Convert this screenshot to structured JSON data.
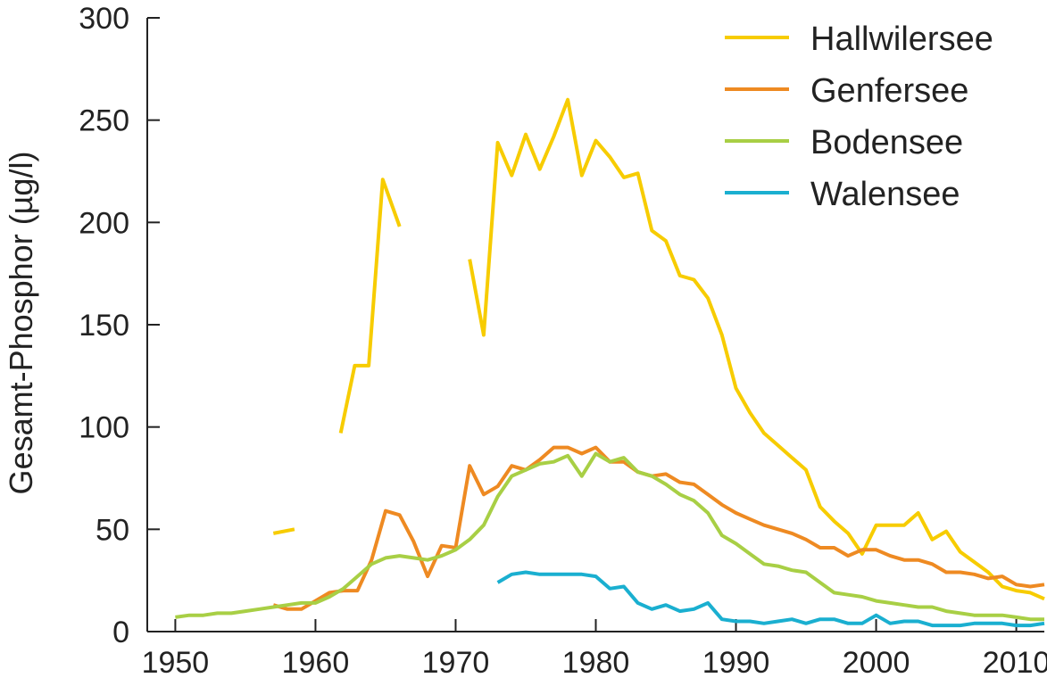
{
  "chart_data": {
    "type": "line",
    "title": "",
    "xlabel": "",
    "ylabel": "Gesamt-Phosphor (µg/l)",
    "xlim": [
      1948,
      2012
    ],
    "ylim": [
      0,
      300
    ],
    "xticks": [
      1950,
      1960,
      1970,
      1980,
      1990,
      2000,
      2010
    ],
    "yticks": [
      0,
      50,
      100,
      150,
      200,
      250,
      300
    ],
    "grid": false,
    "legend": "top-right",
    "series": [
      {
        "name": "Hallwilersee",
        "color": "#F7CC00",
        "points": [
          [
            1957,
            48
          ],
          [
            1958.5,
            50
          ],
          null,
          [
            1961.8,
            97
          ],
          [
            1962.8,
            130
          ],
          [
            1963.8,
            130
          ],
          [
            1964.8,
            221
          ],
          [
            1966,
            198
          ],
          null,
          [
            1971,
            182
          ],
          [
            1972,
            145
          ],
          [
            1973,
            239
          ],
          [
            1974,
            223
          ],
          [
            1975,
            243
          ],
          [
            1976,
            226
          ],
          [
            1977,
            242
          ],
          [
            1978,
            260
          ],
          [
            1979,
            223
          ],
          [
            1980,
            240
          ],
          [
            1981,
            232
          ],
          [
            1982,
            222
          ],
          [
            1983,
            224
          ],
          [
            1984,
            196
          ],
          [
            1985,
            191
          ],
          [
            1986,
            174
          ],
          [
            1987,
            172
          ],
          [
            1988,
            163
          ],
          [
            1989,
            145
          ],
          [
            1990,
            119
          ],
          [
            1991,
            107
          ],
          [
            1992,
            97
          ],
          [
            1993,
            91
          ],
          [
            1994,
            85
          ],
          [
            1995,
            79
          ],
          [
            1996,
            61
          ],
          [
            1997,
            54
          ],
          [
            1998,
            48
          ],
          [
            1999,
            38
          ],
          [
            2000,
            52
          ],
          [
            2001,
            52
          ],
          [
            2002,
            52
          ],
          [
            2003,
            58
          ],
          [
            2004,
            45
          ],
          [
            2005,
            49
          ],
          [
            2006,
            39
          ],
          [
            2007,
            34
          ],
          [
            2008,
            29
          ],
          [
            2009,
            22
          ],
          [
            2010,
            20
          ],
          [
            2011,
            19
          ],
          [
            2012,
            16
          ]
        ]
      },
      {
        "name": "Genfersee",
        "color": "#EE8A22",
        "points": [
          [
            1957,
            13
          ],
          [
            1958,
            11
          ],
          [
            1959,
            11
          ],
          [
            1960,
            15
          ],
          [
            1961,
            19
          ],
          [
            1962,
            20
          ],
          [
            1963,
            20
          ],
          [
            1964,
            35
          ],
          [
            1965,
            59
          ],
          [
            1966,
            57
          ],
          [
            1967,
            44
          ],
          [
            1968,
            27
          ],
          [
            1969,
            42
          ],
          [
            1970,
            41
          ],
          [
            1971,
            81
          ],
          [
            1972,
            67
          ],
          [
            1973,
            71
          ],
          [
            1974,
            81
          ],
          [
            1975,
            79
          ],
          [
            1976,
            84
          ],
          [
            1977,
            90
          ],
          [
            1978,
            90
          ],
          [
            1979,
            87
          ],
          [
            1980,
            90
          ],
          [
            1981,
            83
          ],
          [
            1982,
            83
          ],
          [
            1983,
            78
          ],
          [
            1984,
            76
          ],
          [
            1985,
            77
          ],
          [
            1986,
            73
          ],
          [
            1987,
            72
          ],
          [
            1988,
            67
          ],
          [
            1989,
            62
          ],
          [
            1990,
            58
          ],
          [
            1991,
            55
          ],
          [
            1992,
            52
          ],
          [
            1993,
            50
          ],
          [
            1994,
            48
          ],
          [
            1995,
            45
          ],
          [
            1996,
            41
          ],
          [
            1997,
            41
          ],
          [
            1998,
            37
          ],
          [
            1999,
            40
          ],
          [
            2000,
            40
          ],
          [
            2001,
            37
          ],
          [
            2002,
            35
          ],
          [
            2003,
            35
          ],
          [
            2004,
            33
          ],
          [
            2005,
            29
          ],
          [
            2006,
            29
          ],
          [
            2007,
            28
          ],
          [
            2008,
            26
          ],
          [
            2009,
            27
          ],
          [
            2010,
            23
          ],
          [
            2011,
            22
          ],
          [
            2012,
            23
          ]
        ]
      },
      {
        "name": "Bodensee",
        "color": "#A8CF45",
        "points": [
          [
            1950,
            7
          ],
          [
            1951,
            8
          ],
          [
            1952,
            8
          ],
          [
            1953,
            9
          ],
          [
            1954,
            9
          ],
          [
            1955,
            10
          ],
          [
            1956,
            11
          ],
          [
            1957,
            12
          ],
          [
            1958,
            13
          ],
          [
            1959,
            14
          ],
          [
            1960,
            14
          ],
          [
            1961,
            17
          ],
          [
            1962,
            21
          ],
          [
            1963,
            27
          ],
          [
            1964,
            33
          ],
          [
            1965,
            36
          ],
          [
            1966,
            37
          ],
          [
            1967,
            36
          ],
          [
            1968,
            35
          ],
          [
            1969,
            37
          ],
          [
            1970,
            40
          ],
          [
            1971,
            45
          ],
          [
            1972,
            52
          ],
          [
            1973,
            66
          ],
          [
            1974,
            76
          ],
          [
            1975,
            79
          ],
          [
            1976,
            82
          ],
          [
            1977,
            83
          ],
          [
            1978,
            86
          ],
          [
            1979,
            76
          ],
          [
            1980,
            87
          ],
          [
            1981,
            83
          ],
          [
            1982,
            85
          ],
          [
            1983,
            78
          ],
          [
            1984,
            76
          ],
          [
            1985,
            72
          ],
          [
            1986,
            67
          ],
          [
            1987,
            64
          ],
          [
            1988,
            58
          ],
          [
            1989,
            47
          ],
          [
            1990,
            43
          ],
          [
            1991,
            38
          ],
          [
            1992,
            33
          ],
          [
            1993,
            32
          ],
          [
            1994,
            30
          ],
          [
            1995,
            29
          ],
          [
            1996,
            24
          ],
          [
            1997,
            19
          ],
          [
            1998,
            18
          ],
          [
            1999,
            17
          ],
          [
            2000,
            15
          ],
          [
            2001,
            14
          ],
          [
            2002,
            13
          ],
          [
            2003,
            12
          ],
          [
            2004,
            12
          ],
          [
            2005,
            10
          ],
          [
            2006,
            9
          ],
          [
            2007,
            8
          ],
          [
            2008,
            8
          ],
          [
            2009,
            8
          ],
          [
            2010,
            7
          ],
          [
            2011,
            6
          ],
          [
            2012,
            6
          ]
        ]
      },
      {
        "name": "Walensee",
        "color": "#1AAFD0",
        "points": [
          [
            1973,
            24
          ],
          [
            1974,
            28
          ],
          [
            1975,
            29
          ],
          [
            1976,
            28
          ],
          [
            1977,
            28
          ],
          [
            1978,
            28
          ],
          [
            1979,
            28
          ],
          [
            1980,
            27
          ],
          [
            1981,
            21
          ],
          [
            1982,
            22
          ],
          [
            1983,
            14
          ],
          [
            1984,
            11
          ],
          [
            1985,
            13
          ],
          [
            1986,
            10
          ],
          [
            1987,
            11
          ],
          [
            1988,
            14
          ],
          [
            1989,
            6
          ],
          [
            1990,
            5
          ],
          [
            1991,
            5
          ],
          [
            1992,
            4
          ],
          [
            1993,
            5
          ],
          [
            1994,
            6
          ],
          [
            1995,
            4
          ],
          [
            1996,
            6
          ],
          [
            1997,
            6
          ],
          [
            1998,
            4
          ],
          [
            1999,
            4
          ],
          [
            2000,
            8
          ],
          [
            2001,
            4
          ],
          [
            2002,
            5
          ],
          [
            2003,
            5
          ],
          [
            2004,
            3
          ],
          [
            2005,
            3
          ],
          [
            2006,
            3
          ],
          [
            2007,
            4
          ],
          [
            2008,
            4
          ],
          [
            2009,
            4
          ],
          [
            2010,
            3
          ],
          [
            2011,
            3
          ],
          [
            2012,
            4
          ]
        ]
      }
    ]
  }
}
